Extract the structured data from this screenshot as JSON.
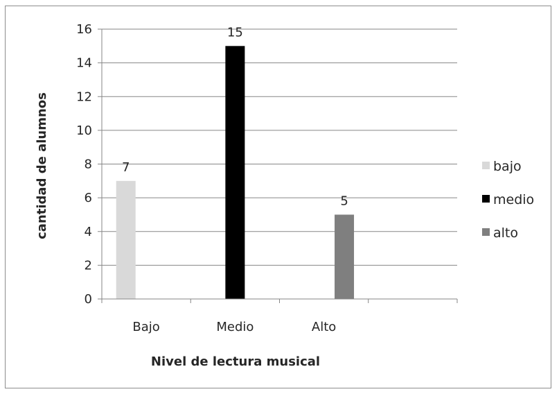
{
  "chart_data": {
    "type": "bar",
    "xlabel": "Nivel de lectura musical",
    "ylabel": "cantidad de alumnos",
    "ylim": [
      0,
      16
    ],
    "yticks": [
      0,
      2,
      4,
      6,
      8,
      10,
      12,
      14,
      16
    ],
    "categories": [
      "Bajo",
      "Medio",
      "Alto",
      ""
    ],
    "series": [
      {
        "name": "bajo",
        "color": "#d9d9d9",
        "values": [
          7,
          null,
          null,
          null
        ]
      },
      {
        "name": "medio",
        "color": "#000000",
        "values": [
          null,
          15,
          null,
          null
        ]
      },
      {
        "name": "alto",
        "color": "#7f7f7f",
        "values": [
          null,
          null,
          5,
          null
        ]
      }
    ],
    "data_labels": [
      "7",
      "15",
      "5"
    ],
    "grid": true,
    "legend_position": "right"
  }
}
